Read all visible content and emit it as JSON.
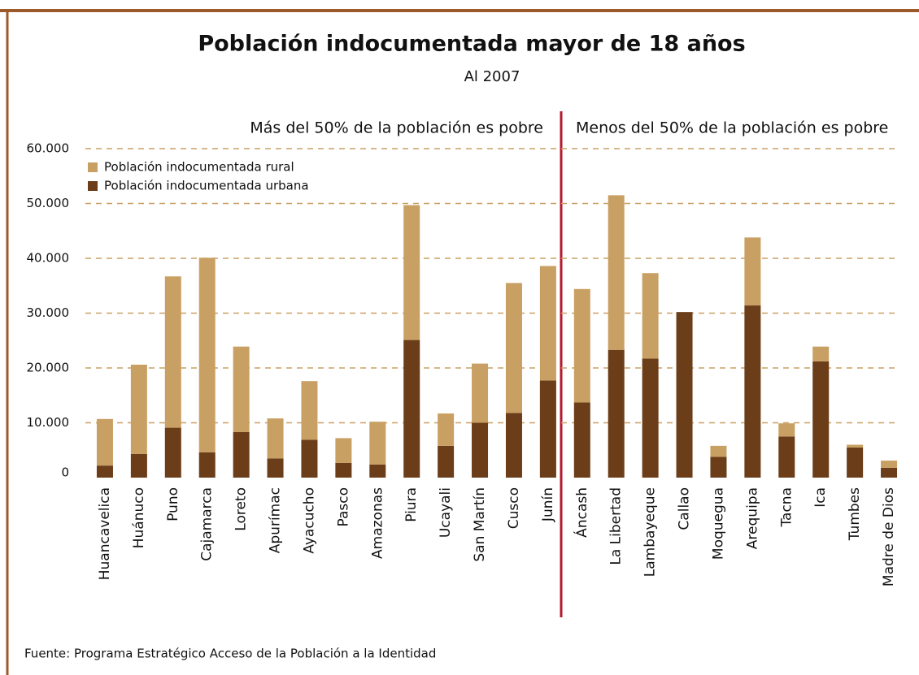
{
  "chart_data": {
    "type": "stacked_bar",
    "title": "Población indocumentada mayor de 18 años",
    "subtitle": "Al 2007",
    "sections": [
      "Más del 50% de la población es pobre",
      "Menos del 50% de la población es pobre"
    ],
    "source": "Fuente: Programa Estratégico Acceso de la Población a la Identidad",
    "categories": [
      "Huancavelica",
      "Huánuco",
      "Puno",
      "Cajamarca",
      "Loreto",
      "Apurímac",
      "Ayacucho",
      "Pasco",
      "Amazonas",
      "Piura",
      "Ucayali",
      "San Martín",
      "Cusco",
      "Junín",
      "Áncash",
      "La Libertad",
      "Lambayeque",
      "Callao",
      "Moquegua",
      "Arequipa",
      "Tacna",
      "Ica",
      "Tumbes",
      "Madre de Dios"
    ],
    "series": [
      {
        "name": "Población indocumentada urbana",
        "color": "#6b3d18",
        "values": [
          2200,
          4300,
          9100,
          4600,
          8300,
          3500,
          6900,
          2700,
          2400,
          25100,
          5800,
          10000,
          11800,
          17700,
          13700,
          23300,
          21700,
          30200,
          3800,
          31400,
          7500,
          21200,
          5500,
          1800
        ]
      },
      {
        "name": "Población indocumentada rural",
        "color": "#c9a063",
        "values": [
          8500,
          16300,
          27600,
          35500,
          15600,
          7300,
          10700,
          4500,
          7800,
          24600,
          5900,
          10800,
          23700,
          20900,
          20700,
          28200,
          15600,
          0,
          2000,
          12400,
          2400,
          2700,
          500,
          1300
        ]
      }
    ],
    "ylim": [
      0,
      60000
    ],
    "yticks": [
      0,
      {
        "value": 10000,
        "label": "10.000"
      },
      {
        "value": 20000,
        "label": "20.000"
      },
      {
        "value": 30000,
        "label": "30.000"
      },
      {
        "value": 40000,
        "label": "40.000"
      },
      {
        "value": 50000,
        "label": "50.000"
      },
      {
        "value": 60000,
        "label": "60.000"
      }
    ],
    "grid": true,
    "legend": "top-left"
  }
}
